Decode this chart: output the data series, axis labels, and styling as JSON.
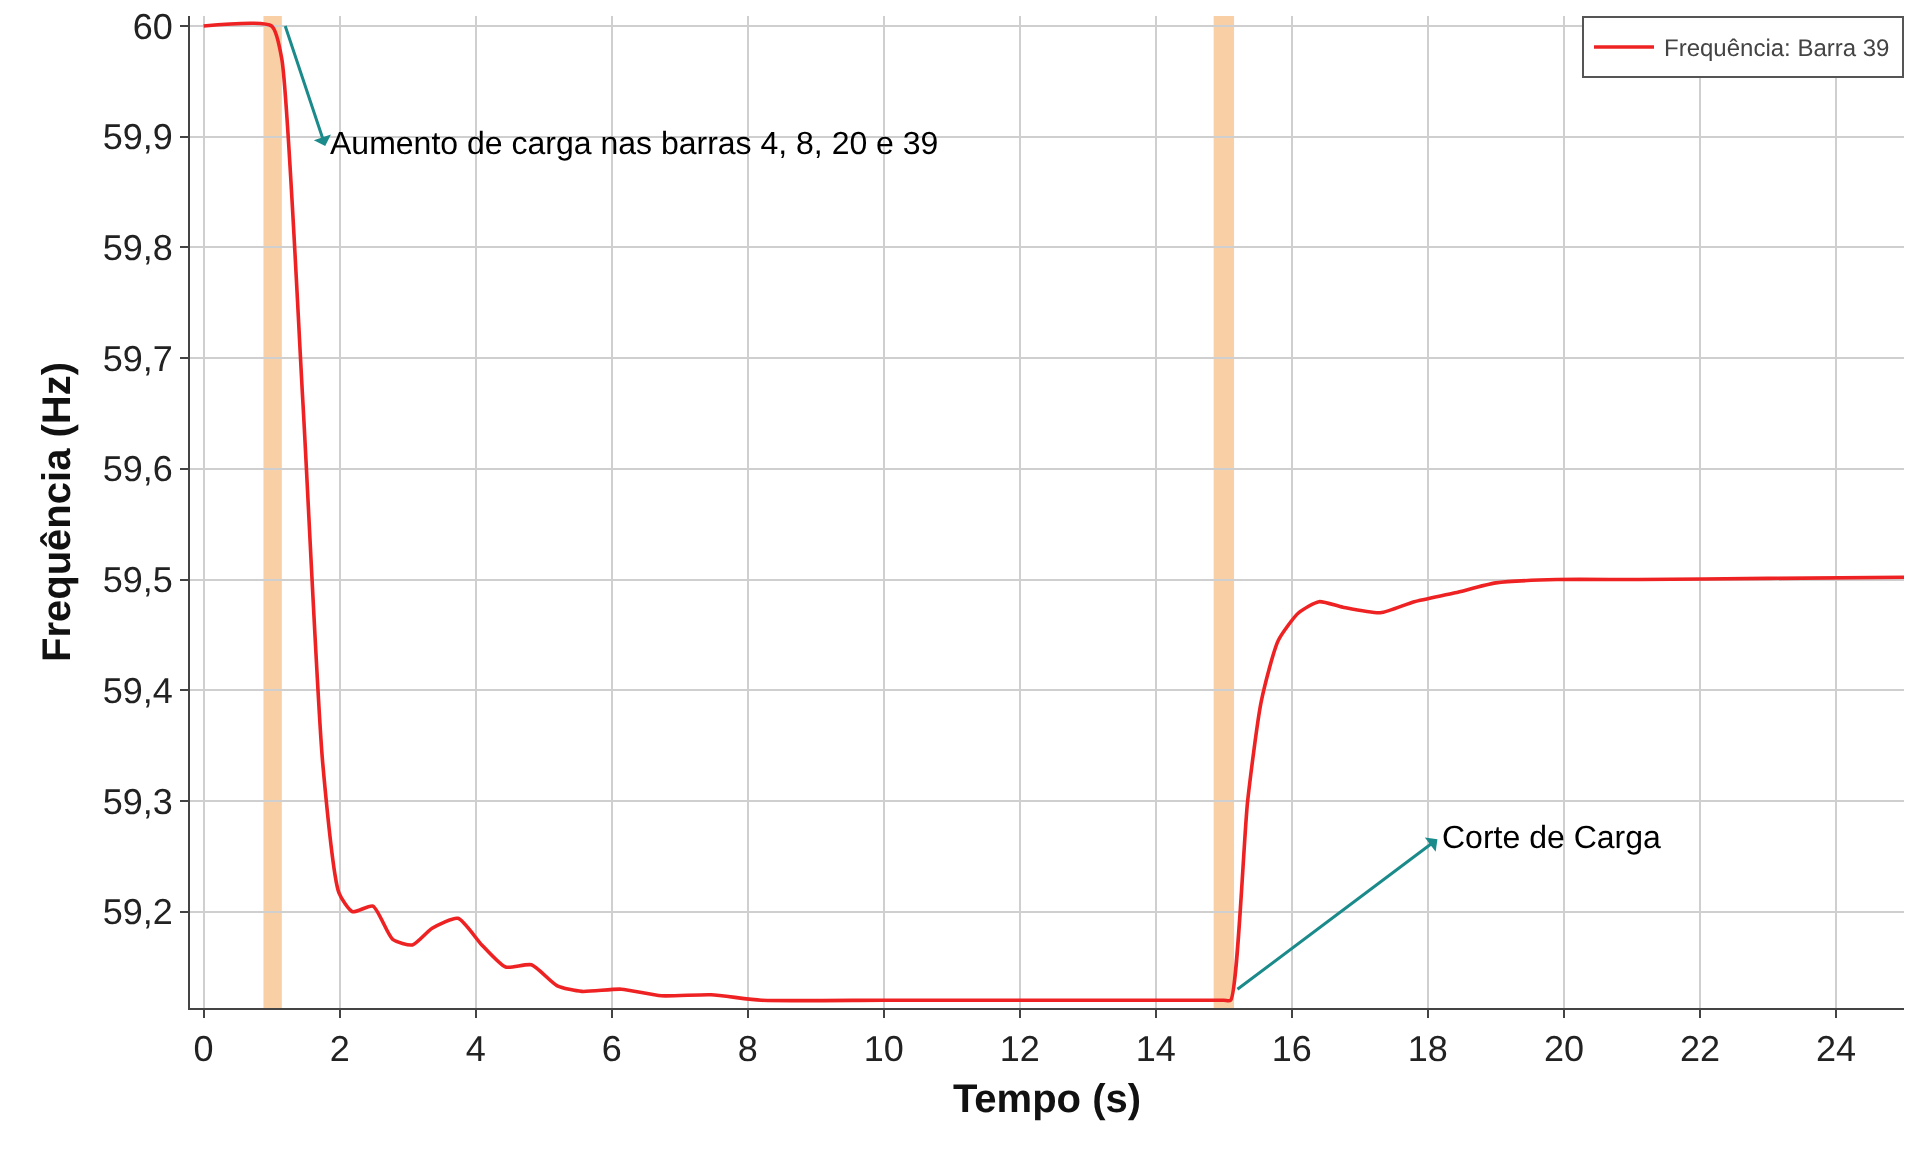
{
  "chart_data": {
    "type": "line",
    "xlabel": "Tempo (s)",
    "ylabel": "Frequência (Hz)",
    "xlim": [
      -0.2,
      25
    ],
    "ylim": [
      59.113,
      60.009
    ],
    "xticks": [
      0,
      2,
      4,
      6,
      8,
      10,
      12,
      14,
      16,
      18,
      20,
      22,
      24
    ],
    "yticks": [
      {
        "value": 59.2,
        "label": "59,2"
      },
      {
        "value": 59.3,
        "label": "59,3"
      },
      {
        "value": 59.4,
        "label": "59,4"
      },
      {
        "value": 59.5,
        "label": "59,5"
      },
      {
        "value": 59.6,
        "label": "59,6"
      },
      {
        "value": 59.7,
        "label": "59,7"
      },
      {
        "value": 59.8,
        "label": "59,8"
      },
      {
        "value": 59.9,
        "label": "59,9"
      },
      {
        "value": 60,
        "label": "60"
      }
    ],
    "grid": true,
    "legend": "top right",
    "marker": "none",
    "line_style": "solid",
    "series": [
      {
        "name": "Frequência: Barra 39",
        "color": "#ee2222",
        "x": [
          0,
          1.0,
          1.15,
          1.46,
          1.75,
          1.99,
          2.19,
          2.49,
          2.78,
          3.07,
          3.36,
          3.74,
          4.09,
          4.44,
          4.82,
          5.2,
          5.56,
          6.14,
          6.73,
          7.46,
          8.2,
          10,
          12,
          14,
          15.0,
          15.1,
          15.35,
          15.55,
          15.8,
          16.1,
          16.4,
          16.75,
          17.3,
          17.8,
          18.4,
          19,
          19.9,
          21.1,
          23,
          25
        ],
        "values": [
          60,
          60,
          59.97,
          59.66,
          59.335,
          59.217,
          59.2,
          59.205,
          59.175,
          59.17,
          59.185,
          59.194,
          59.17,
          59.15,
          59.152,
          59.133,
          59.128,
          59.13,
          59.124,
          59.125,
          59.12,
          59.12,
          59.12,
          59.12,
          59.12,
          59.12,
          59.3,
          59.39,
          59.445,
          59.47,
          59.48,
          59.475,
          59.47,
          59.48,
          59.488,
          59.497,
          59.5,
          59.5,
          59.501,
          59.502
        ]
      }
    ],
    "bands": [
      {
        "axis": "x",
        "from": 0.88,
        "to": 1.15,
        "color": "#f9cfa5"
      },
      {
        "axis": "x",
        "from": 14.85,
        "to": 15.15,
        "color": "#f9cfa5"
      }
    ],
    "annotations": [
      {
        "text": "Aumento de carga nas barras 4, 8, 20 e 39",
        "x": 1.2,
        "y": 60
      },
      {
        "text": "Corte de Carga",
        "x": 15.2,
        "y": 59.13
      }
    ]
  }
}
